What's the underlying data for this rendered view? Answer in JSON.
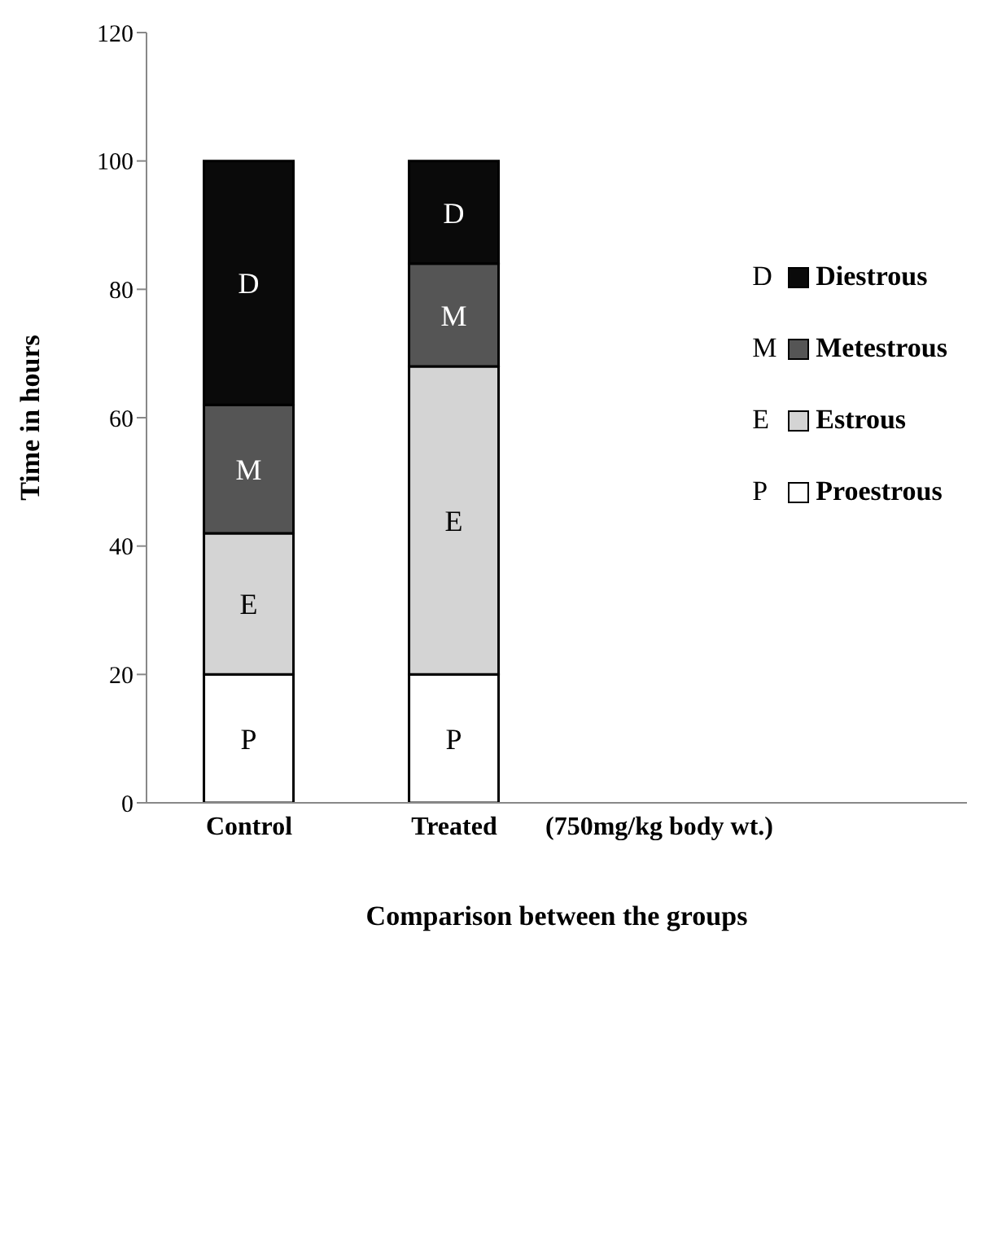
{
  "chart_data": {
    "type": "bar",
    "stacked": true,
    "xlabel": "Comparison between the groups",
    "ylabel": "Time in hours",
    "categories": [
      "Control",
      "Treated",
      "(750mg/kg body wt.)",
      null
    ],
    "series": [
      {
        "name": "Proestrous",
        "color": "#ffffff",
        "values": [
          20,
          20,
          null,
          null
        ],
        "value_labels": [
          "P",
          "P",
          null,
          null
        ]
      },
      {
        "name": "Estrous",
        "color": "#d4d4d4",
        "values": [
          22,
          48,
          null,
          null
        ],
        "value_labels": [
          "E",
          "E",
          null,
          null
        ]
      },
      {
        "name": "Metestrous",
        "color": "#555555",
        "values": [
          20,
          16,
          null,
          null
        ],
        "value_labels": [
          "M",
          "M",
          null,
          null
        ]
      },
      {
        "name": "Diestrous",
        "color": "#0a0a0a",
        "values": [
          38,
          16,
          null,
          null
        ],
        "value_labels": [
          "D",
          "D",
          null,
          null
        ]
      }
    ],
    "ylim": [
      0,
      120
    ],
    "yticks": [
      0,
      20,
      40,
      60,
      80,
      100,
      120
    ],
    "grid": false,
    "legend": "top right"
  }
}
